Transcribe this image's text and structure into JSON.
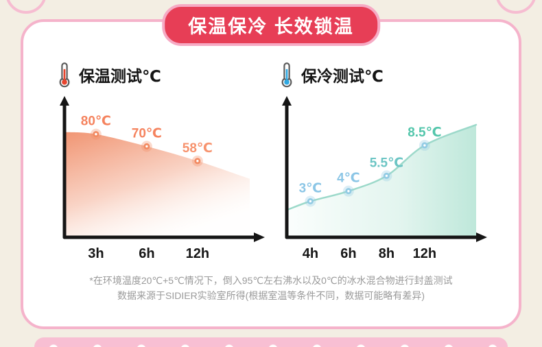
{
  "badge": {
    "title": "保温保冷 长效锁温"
  },
  "palette": {
    "badge_bg": "#e73e56",
    "badge_border": "#f6aac4",
    "card_border": "#f5b3cb",
    "page_bg": "#f3eee3",
    "axis": "#151515",
    "footnote_text": "#9a9a9a",
    "bottom_strip": "#f8bfd3",
    "hot_icon": "#e8452e",
    "cold_icon": "#2fa8e1"
  },
  "icons": [
    "thermometer-hot-icon",
    "thermometer-cold-icon"
  ],
  "chart_data": [
    {
      "type": "area",
      "title": "保温测试℃",
      "categories": [
        "3h",
        "6h",
        "12h"
      ],
      "values": [
        80,
        70,
        58
      ],
      "point_labels": [
        "80℃",
        "70℃",
        "58℃"
      ],
      "ylim": [
        0,
        100
      ],
      "grid": false,
      "legend": false,
      "colors": {
        "area_from": "#f0906c",
        "area_to": "#fdeee4",
        "dot": "#f28b63",
        "labels": [
          "#f5835e",
          "#f5835e",
          "#f7936e"
        ],
        "line": "",
        "fade": "down-right"
      }
    },
    {
      "type": "area",
      "title": "保冷测试℃",
      "categories": [
        "4h",
        "6h",
        "8h",
        "12h"
      ],
      "values": [
        3,
        4,
        5.5,
        8.5
      ],
      "point_labels": [
        "3℃",
        "4℃",
        "5.5℃",
        "8.5℃"
      ],
      "ylim": [
        0,
        12
      ],
      "grid": false,
      "legend": false,
      "colors": {
        "area_from": "#ffffff",
        "area_to": "#b7e5d6",
        "dot": "#92cbe4",
        "labels": [
          "#8cc6e6",
          "#8cc6e6",
          "#6cc5c4",
          "#53c6ab"
        ],
        "line": "#9cd9ca",
        "fade": "right"
      }
    }
  ],
  "footnote": {
    "line1": "*在环境温度20℃+5℃情况下，倒入95℃左右沸水以及0℃的冰水混合物进行封盖测试",
    "line2": "数据来源于SIDIER实验室所得(根据室温等条件不同，数据可能略有差异)"
  }
}
